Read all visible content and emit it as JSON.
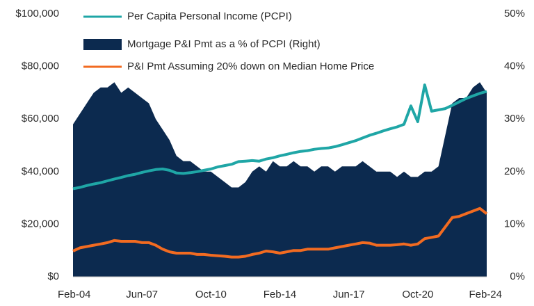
{
  "chart_data": {
    "type": "line",
    "categories": [
      "Feb-04",
      null,
      null,
      null,
      null,
      null,
      null,
      null,
      null,
      null,
      "Jun-07",
      null,
      null,
      null,
      null,
      null,
      null,
      null,
      null,
      null,
      "Oct-10",
      null,
      null,
      null,
      null,
      null,
      null,
      null,
      null,
      null,
      "Feb-14",
      null,
      null,
      null,
      null,
      null,
      null,
      null,
      null,
      null,
      "Jun-17",
      null,
      null,
      null,
      null,
      null,
      null,
      null,
      null,
      null,
      "Oct-20",
      null,
      null,
      null,
      null,
      null,
      null,
      null,
      null,
      null,
      "Feb-24"
    ],
    "series": [
      {
        "name": "Per Capita Personal Income (PCPI)",
        "type": "line",
        "color": "#1fa6a6",
        "values": [
          33500,
          34000,
          34700,
          35300,
          35800,
          36500,
          37200,
          37800,
          38500,
          39000,
          39700,
          40300,
          40800,
          41000,
          40500,
          39500,
          39300,
          39600,
          40000,
          40500,
          41000,
          41800,
          42300,
          42800,
          43800,
          44000,
          44200,
          44000,
          44800,
          45300,
          46000,
          46600,
          47200,
          47700,
          48000,
          48500,
          48800,
          49000,
          49500,
          50200,
          51000,
          51800,
          52800,
          53800,
          54600,
          55500,
          56300,
          57000,
          58000,
          65000,
          59000,
          73000,
          63000,
          63500,
          64000,
          65200,
          66500,
          67800,
          68800,
          69800,
          70500
        ]
      },
      {
        "name": "Mortgage P&I Pmt as a % of PCPI (Right)",
        "type": "area",
        "axis": "y2",
        "color": "#0c2a4f",
        "values": [
          29,
          31,
          33,
          35,
          36,
          36,
          37,
          35,
          36,
          35,
          34,
          33,
          30,
          28,
          26,
          23,
          22,
          22,
          21,
          20,
          20,
          19,
          18,
          17,
          17,
          18,
          20,
          21,
          20,
          22,
          21,
          21,
          22,
          21,
          21,
          20,
          21,
          21,
          20,
          21,
          21,
          21,
          22,
          21,
          20,
          20,
          20,
          19,
          20,
          19,
          19,
          20,
          20,
          21,
          27,
          33,
          34,
          34,
          36,
          37,
          35
        ]
      },
      {
        "name": "P&I Pmt Assuming 20% down on Median Home Price",
        "type": "line",
        "color": "#f26b21",
        "values": [
          9800,
          11000,
          11500,
          12000,
          12500,
          13000,
          13800,
          13500,
          13500,
          13500,
          13000,
          13000,
          12000,
          10500,
          9500,
          9000,
          9000,
          9000,
          8500,
          8500,
          8200,
          8000,
          7800,
          7500,
          7500,
          7800,
          8500,
          9000,
          9800,
          9500,
          9000,
          9500,
          10000,
          10000,
          10500,
          10500,
          10500,
          10500,
          11000,
          11500,
          12000,
          12500,
          13000,
          12800,
          12000,
          12000,
          12000,
          12200,
          12500,
          12000,
          12500,
          14500,
          15000,
          15500,
          19000,
          22500,
          23000,
          24000,
          25000,
          26000,
          24000
        ]
      }
    ],
    "ylim": [
      0,
      100000
    ],
    "yticks": [
      {
        "value": 0,
        "label": "$0"
      },
      {
        "value": 20000,
        "label": "$20,000"
      },
      {
        "value": 40000,
        "label": "$40,000"
      },
      {
        "value": 60000,
        "label": "$60,000"
      },
      {
        "value": 80000,
        "label": "$80,000"
      },
      {
        "value": 100000,
        "label": "$100,000"
      }
    ],
    "y2lim": [
      0,
      50
    ],
    "y2ticks": [
      {
        "value": 0,
        "label": "0%"
      },
      {
        "value": 10,
        "label": "10%"
      },
      {
        "value": 20,
        "label": "20%"
      },
      {
        "value": 30,
        "label": "30%"
      },
      {
        "value": 40,
        "label": "40%"
      },
      {
        "value": 50,
        "label": "50%"
      }
    ],
    "grid": false,
    "legend": "upper left"
  }
}
